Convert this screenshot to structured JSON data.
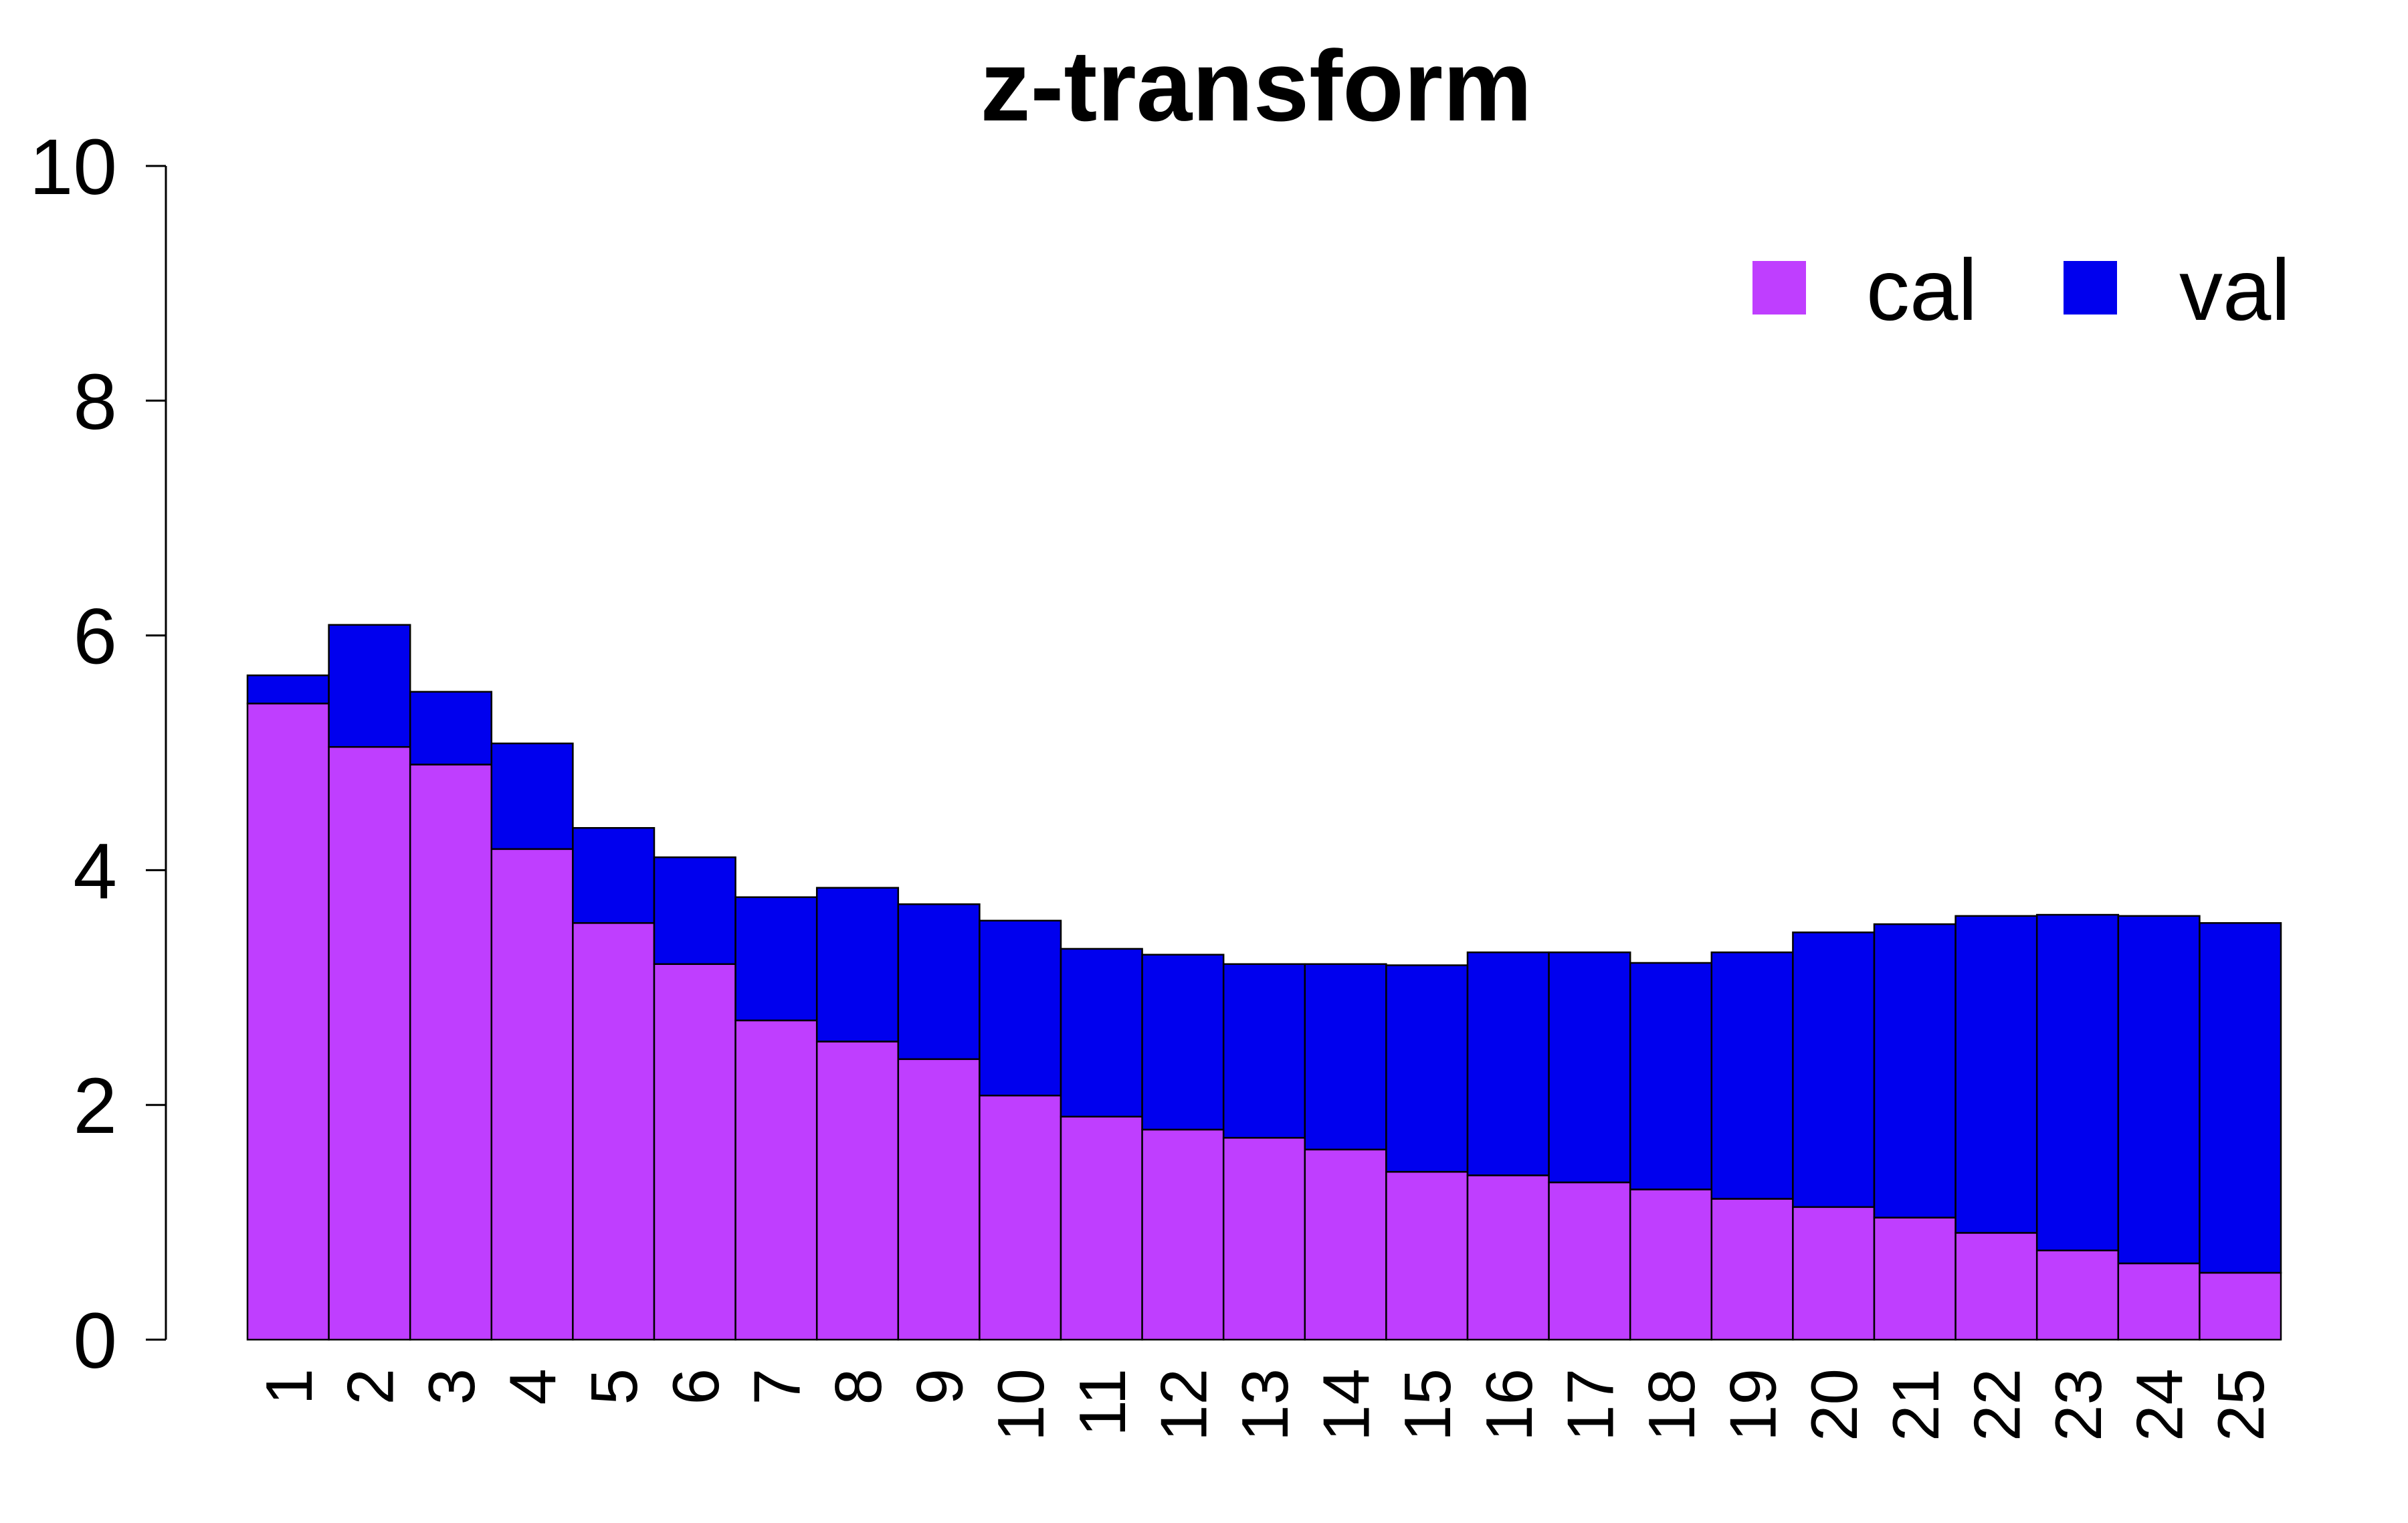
{
  "chart_data": {
    "type": "bar",
    "stacked": true,
    "title": "z-transform",
    "xlabel": "",
    "ylabel": "",
    "ylim": [
      0,
      10
    ],
    "yticks": [
      "0",
      "2",
      "4",
      "6",
      "8",
      "10"
    ],
    "categories": [
      "1",
      "2",
      "3",
      "4",
      "5",
      "6",
      "7",
      "8",
      "9",
      "10",
      "11",
      "12",
      "13",
      "14",
      "15",
      "16",
      "17",
      "18",
      "19",
      "20",
      "21",
      "22",
      "23",
      "24",
      "25"
    ],
    "series": [
      {
        "name": "cal",
        "color": "#BF3EFF",
        "values": [
          5.42,
          5.05,
          4.9,
          4.18,
          3.55,
          3.2,
          2.72,
          2.54,
          2.39,
          2.08,
          1.9,
          1.79,
          1.72,
          1.62,
          1.43,
          1.4,
          1.34,
          1.28,
          1.2,
          1.13,
          1.04,
          0.91,
          0.76,
          0.65,
          0.57
        ]
      },
      {
        "name": "val",
        "color": "#0000EE",
        "values": [
          0.24,
          1.04,
          0.62,
          0.9,
          0.81,
          0.91,
          1.05,
          1.31,
          1.32,
          1.49,
          1.43,
          1.49,
          1.48,
          1.58,
          1.76,
          1.9,
          1.96,
          1.93,
          2.1,
          2.34,
          2.5,
          2.7,
          2.86,
          2.96,
          2.98
        ]
      }
    ],
    "legend_position": "top-right",
    "grid": false
  }
}
